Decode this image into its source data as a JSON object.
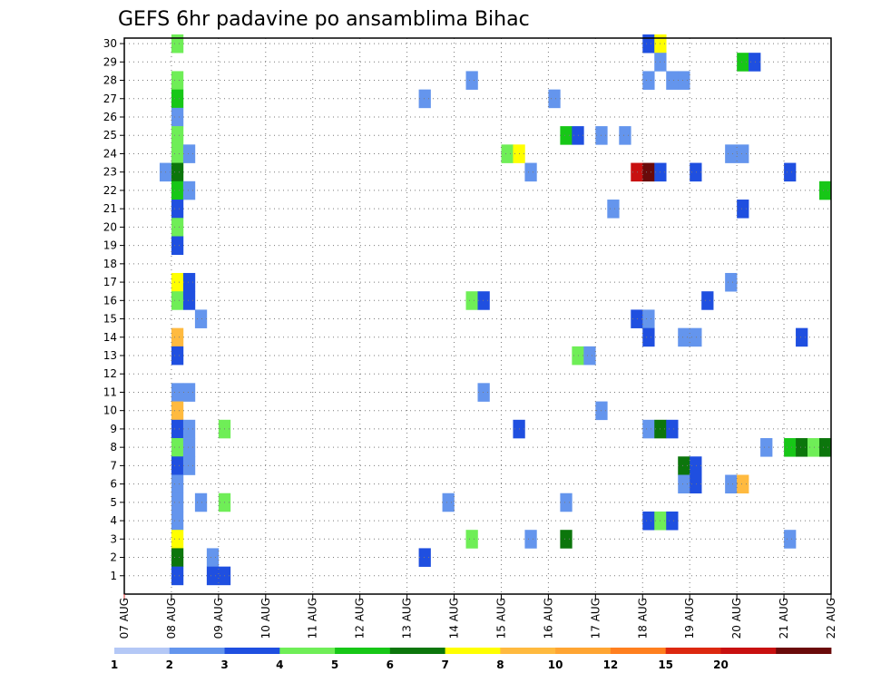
{
  "chart_data": {
    "type": "heatmap",
    "title": "GEFS 6hr padavine po ansamblima Bihac",
    "xlabel": "",
    "ylabel": "",
    "x_start_day": "07 AUG",
    "x_tick_labels": [
      "07 AUG",
      "08 AUG",
      "09 AUG",
      "10 AUG",
      "11 AUG",
      "12 AUG",
      "13 AUG",
      "14 AUG",
      "15 AUG",
      "16 AUG",
      "17 AUG",
      "18 AUG",
      "19 AUG",
      "20 AUG",
      "21 AUG",
      "22 AUG"
    ],
    "y_tick_labels": [
      "1",
      "2",
      "3",
      "4",
      "5",
      "6",
      "7",
      "8",
      "9",
      "10",
      "11",
      "12",
      "13",
      "14",
      "15",
      "16",
      "17",
      "18",
      "19",
      "20",
      "21",
      "22",
      "23",
      "24",
      "25",
      "26",
      "27",
      "28",
      "29",
      "30"
    ],
    "x_range_days": [
      0,
      15
    ],
    "y_range_members": [
      0,
      30
    ],
    "steps_per_day": 4,
    "grid": true,
    "colorbar": {
      "levels": [
        "1",
        "2",
        "3",
        "4",
        "5",
        "6",
        "7",
        "8",
        "10",
        "12",
        "15",
        "20"
      ],
      "colors": [
        "#b4c8f6",
        "#6495ed",
        "#1f4fe0",
        "#6fee57",
        "#17c717",
        "#0c760c",
        "#ffff00",
        "#ffba3f",
        "#ffa533",
        "#ff7f1f",
        "#dc2810",
        "#c81010",
        "#6a0a0a"
      ]
    },
    "cells": [
      {
        "member": 30,
        "t": 4,
        "c": 3
      },
      {
        "member": 30,
        "t": 44,
        "c": 2
      },
      {
        "member": 30,
        "t": 45,
        "c": 6
      },
      {
        "member": 29,
        "t": 45,
        "c": 1
      },
      {
        "member": 29,
        "t": 52,
        "c": 4
      },
      {
        "member": 29,
        "t": 53,
        "c": 2
      },
      {
        "member": 28,
        "t": 4,
        "c": 3
      },
      {
        "member": 28,
        "t": 29,
        "c": 1
      },
      {
        "member": 28,
        "t": 44,
        "c": 1
      },
      {
        "member": 28,
        "t": 46,
        "c": 1
      },
      {
        "member": 28,
        "t": 47,
        "c": 1
      },
      {
        "member": 27,
        "t": 4,
        "c": 4
      },
      {
        "member": 27,
        "t": 25,
        "c": 1
      },
      {
        "member": 27,
        "t": 36,
        "c": 1
      },
      {
        "member": 26,
        "t": 4,
        "c": 1
      },
      {
        "member": 25,
        "t": 4,
        "c": 3
      },
      {
        "member": 25,
        "t": 37,
        "c": 4
      },
      {
        "member": 25,
        "t": 38,
        "c": 2
      },
      {
        "member": 25,
        "t": 40,
        "c": 1
      },
      {
        "member": 25,
        "t": 42,
        "c": 1
      },
      {
        "member": 24,
        "t": 4,
        "c": 3
      },
      {
        "member": 24,
        "t": 5,
        "c": 1
      },
      {
        "member": 24,
        "t": 32,
        "c": 3
      },
      {
        "member": 24,
        "t": 33,
        "c": 6
      },
      {
        "member": 24,
        "t": 51,
        "c": 1
      },
      {
        "member": 24,
        "t": 52,
        "c": 1
      },
      {
        "member": 23,
        "t": 3,
        "c": 1
      },
      {
        "member": 23,
        "t": 4,
        "c": 5
      },
      {
        "member": 23,
        "t": 34,
        "c": 1
      },
      {
        "member": 23,
        "t": 43,
        "c": 11
      },
      {
        "member": 23,
        "t": 44,
        "c": 12
      },
      {
        "member": 23,
        "t": 45,
        "c": 2
      },
      {
        "member": 23,
        "t": 48,
        "c": 2
      },
      {
        "member": 23,
        "t": 56,
        "c": 2
      },
      {
        "member": 22,
        "t": 4,
        "c": 4
      },
      {
        "member": 22,
        "t": 5,
        "c": 1
      },
      {
        "member": 22,
        "t": 59,
        "c": 4
      },
      {
        "member": 21,
        "t": 4,
        "c": 2
      },
      {
        "member": 21,
        "t": 41,
        "c": 1
      },
      {
        "member": 21,
        "t": 52,
        "c": 2
      },
      {
        "member": 20,
        "t": 4,
        "c": 3
      },
      {
        "member": 19,
        "t": 4,
        "c": 2
      },
      {
        "member": 17,
        "t": 4,
        "c": 6
      },
      {
        "member": 17,
        "t": 5,
        "c": 2
      },
      {
        "member": 17,
        "t": 51,
        "c": 1
      },
      {
        "member": 16,
        "t": 4,
        "c": 3
      },
      {
        "member": 16,
        "t": 5,
        "c": 2
      },
      {
        "member": 16,
        "t": 29,
        "c": 3
      },
      {
        "member": 16,
        "t": 30,
        "c": 2
      },
      {
        "member": 16,
        "t": 49,
        "c": 2
      },
      {
        "member": 15,
        "t": 6,
        "c": 1
      },
      {
        "member": 15,
        "t": 43,
        "c": 2
      },
      {
        "member": 15,
        "t": 44,
        "c": 1
      },
      {
        "member": 14,
        "t": 4,
        "c": 7
      },
      {
        "member": 14,
        "t": 44,
        "c": 2
      },
      {
        "member": 14,
        "t": 47,
        "c": 1
      },
      {
        "member": 14,
        "t": 48,
        "c": 1
      },
      {
        "member": 14,
        "t": 57,
        "c": 2
      },
      {
        "member": 13,
        "t": 4,
        "c": 2
      },
      {
        "member": 13,
        "t": 38,
        "c": 3
      },
      {
        "member": 13,
        "t": 39,
        "c": 1
      },
      {
        "member": 11,
        "t": 4,
        "c": 1
      },
      {
        "member": 11,
        "t": 5,
        "c": 1
      },
      {
        "member": 11,
        "t": 30,
        "c": 1
      },
      {
        "member": 10,
        "t": 4,
        "c": 7
      },
      {
        "member": 10,
        "t": 40,
        "c": 1
      },
      {
        "member": 9,
        "t": 4,
        "c": 2
      },
      {
        "member": 9,
        "t": 5,
        "c": 1
      },
      {
        "member": 9,
        "t": 8,
        "c": 3
      },
      {
        "member": 9,
        "t": 33,
        "c": 2
      },
      {
        "member": 9,
        "t": 44,
        "c": 1
      },
      {
        "member": 9,
        "t": 45,
        "c": 5
      },
      {
        "member": 9,
        "t": 46,
        "c": 2
      },
      {
        "member": 8,
        "t": 4,
        "c": 3
      },
      {
        "member": 8,
        "t": 5,
        "c": 1
      },
      {
        "member": 8,
        "t": 54,
        "c": 1
      },
      {
        "member": 8,
        "t": 56,
        "c": 4
      },
      {
        "member": 8,
        "t": 57,
        "c": 5
      },
      {
        "member": 8,
        "t": 58,
        "c": 3
      },
      {
        "member": 8,
        "t": 59,
        "c": 5
      },
      {
        "member": 7,
        "t": 4,
        "c": 2
      },
      {
        "member": 7,
        "t": 5,
        "c": 1
      },
      {
        "member": 7,
        "t": 47,
        "c": 5
      },
      {
        "member": 7,
        "t": 48,
        "c": 2
      },
      {
        "member": 6,
        "t": 4,
        "c": 1
      },
      {
        "member": 6,
        "t": 47,
        "c": 1
      },
      {
        "member": 6,
        "t": 48,
        "c": 2
      },
      {
        "member": 6,
        "t": 51,
        "c": 1
      },
      {
        "member": 6,
        "t": 52,
        "c": 7
      },
      {
        "member": 5,
        "t": 4,
        "c": 1
      },
      {
        "member": 5,
        "t": 6,
        "c": 1
      },
      {
        "member": 5,
        "t": 8,
        "c": 3
      },
      {
        "member": 5,
        "t": 27,
        "c": 1
      },
      {
        "member": 5,
        "t": 37,
        "c": 1
      },
      {
        "member": 4,
        "t": 4,
        "c": 1
      },
      {
        "member": 4,
        "t": 44,
        "c": 2
      },
      {
        "member": 4,
        "t": 45,
        "c": 3
      },
      {
        "member": 4,
        "t": 46,
        "c": 2
      },
      {
        "member": 3,
        "t": 4,
        "c": 6
      },
      {
        "member": 3,
        "t": 29,
        "c": 3
      },
      {
        "member": 3,
        "t": 34,
        "c": 1
      },
      {
        "member": 3,
        "t": 37,
        "c": 5
      },
      {
        "member": 3,
        "t": 56,
        "c": 1
      },
      {
        "member": 2,
        "t": 4,
        "c": 5
      },
      {
        "member": 2,
        "t": 7,
        "c": 1
      },
      {
        "member": 2,
        "t": 25,
        "c": 2
      },
      {
        "member": 1,
        "t": 4,
        "c": 2
      },
      {
        "member": 1,
        "t": 7,
        "c": 2
      },
      {
        "member": 1,
        "t": 8,
        "c": 2
      }
    ]
  }
}
